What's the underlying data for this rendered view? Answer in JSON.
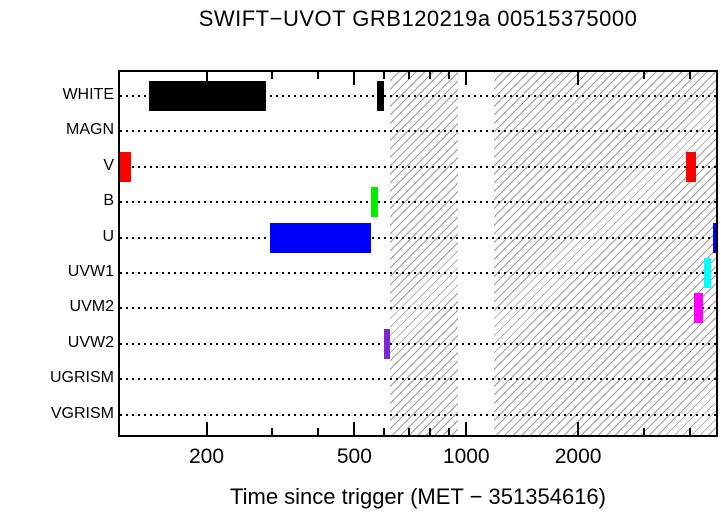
{
  "chart_data": {
    "type": "bar",
    "subtype": "horizontal interval timeline (UVOT filter exposure windows)",
    "title": "SWIFT−UVOT GRB120219a 00515375000",
    "xlabel": "Time since trigger (MET − 351354616)",
    "x_scale": "log",
    "xlim": [
      117,
      4700
    ],
    "x_major_ticks": [
      200,
      500,
      1000,
      2000
    ],
    "x_minor_ticks": [
      200,
      300,
      400,
      500,
      600,
      700,
      800,
      900,
      1000,
      2000,
      3000,
      4000
    ],
    "rows": [
      "WHITE",
      "MAGN",
      "V",
      "B",
      "U",
      "UVW1",
      "UVM2",
      "UVW2",
      "UGRISM",
      "VGRISM"
    ],
    "grid": "dotted horizontal line per row",
    "legend": "none",
    "intervals": [
      {
        "row": "WHITE",
        "start": 140,
        "end": 290,
        "color": "#000000"
      },
      {
        "row": "WHITE",
        "start": 575,
        "end": 600,
        "color": "#000000"
      },
      {
        "row": "V",
        "start": 117,
        "end": 125,
        "color": "#ff0000"
      },
      {
        "row": "V",
        "start": 3900,
        "end": 4150,
        "color": "#ff0000"
      },
      {
        "row": "B",
        "start": 555,
        "end": 578,
        "color": "#00ee00"
      },
      {
        "row": "U",
        "start": 297,
        "end": 555,
        "color": "#0000ff"
      },
      {
        "row": "U",
        "start": 4610,
        "end": 4700,
        "color": "#0000ff"
      },
      {
        "row": "UVW1",
        "start": 4360,
        "end": 4560,
        "color": "#00ffff"
      },
      {
        "row": "UVM2",
        "start": 4100,
        "end": 4330,
        "color": "#ff00ff"
      },
      {
        "row": "UVW2",
        "start": 600,
        "end": 625,
        "color": "#7d26cd"
      }
    ],
    "hatched_regions": [
      {
        "start": 625,
        "end": 950
      },
      {
        "start": 1190,
        "end": 4700
      }
    ]
  }
}
